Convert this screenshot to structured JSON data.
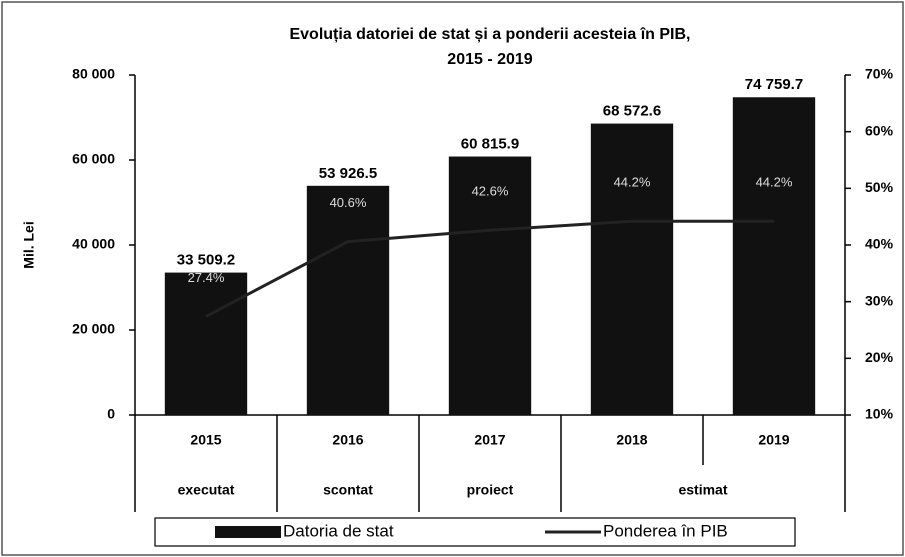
{
  "chart_data": {
    "type": "bar",
    "title": [
      "Evoluția datoriei de stat  și a ponderii acesteia în PIB,",
      "2015 - 2019"
    ],
    "ylabel": "Mil. Lei",
    "categories": [
      "2015",
      "2016",
      "2017",
      "2018",
      "2019"
    ],
    "groups": [
      {
        "label": "executat",
        "span": 1
      },
      {
        "label": "scontat",
        "span": 1
      },
      {
        "label": "proiect",
        "span": 1
      },
      {
        "label": "estimat",
        "span": 2
      }
    ],
    "series": [
      {
        "name": "Datoria de stat",
        "type": "bar",
        "color": "#111111",
        "values": [
          33509.2,
          53926.5,
          60815.9,
          68572.6,
          74759.7
        ],
        "value_labels": [
          "33 509.2",
          "53 926.5",
          "60 815.9",
          "68 572.6",
          "74 759.7"
        ]
      },
      {
        "name": "Ponderea în PIB",
        "type": "line",
        "axis": "y2",
        "color": "#222222",
        "values": [
          27.4,
          40.6,
          42.6,
          44.2,
          44.2
        ],
        "value_labels": [
          "27.4%",
          "40.6%",
          "42.6%",
          "44.2%",
          "44.2%"
        ]
      }
    ],
    "ylim": [
      0,
      80000
    ],
    "yticks": [
      0,
      {
        "value": 20000,
        "label": "20 000"
      },
      {
        "value": 40000,
        "label": "40 000"
      },
      {
        "value": 60000,
        "label": "60 000"
      },
      {
        "value": 80000,
        "label": "80 000"
      }
    ],
    "y2lim": [
      10,
      70
    ],
    "y2ticks": [
      {
        "value": 10,
        "label": "10%"
      },
      {
        "value": 20,
        "label": "20%"
      },
      {
        "value": 30,
        "label": "30%"
      },
      {
        "value": 40,
        "label": "40%"
      },
      {
        "value": 50,
        "label": "50%"
      },
      {
        "value": 60,
        "label": "60%"
      },
      {
        "value": 70,
        "label": "70%"
      }
    ],
    "legend": "bottom"
  }
}
